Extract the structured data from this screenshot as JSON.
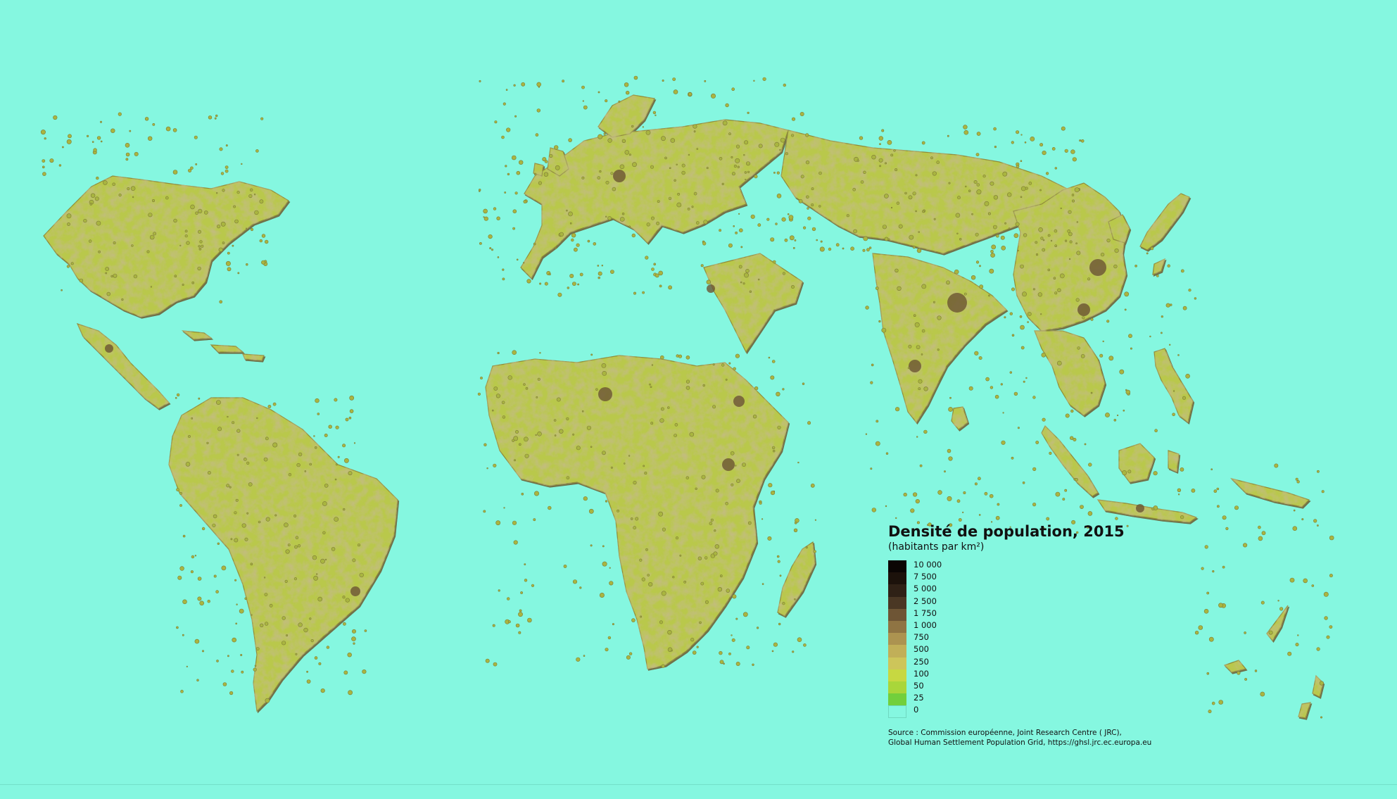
{
  "map": {
    "background": "#85f7e0",
    "relief_shadow": "#7a6a3a",
    "land_base": "#b8c94a"
  },
  "legend": {
    "title": "Densité de population, 2015",
    "subtitle": "(habitants par km²)",
    "classes": [
      {
        "label": "10 000",
        "color": "#0b0604"
      },
      {
        "label": "7 500",
        "color": "#1c120b"
      },
      {
        "label": "5 000",
        "color": "#2f2116"
      },
      {
        "label": "2 500",
        "color": "#4a3724"
      },
      {
        "label": "1 750",
        "color": "#6e5535"
      },
      {
        "label": "1 000",
        "color": "#8f7443"
      },
      {
        "label": "750",
        "color": "#ac9350"
      },
      {
        "label": "500",
        "color": "#c1af58"
      },
      {
        "label": "250",
        "color": "#cdc55a"
      },
      {
        "label": "100",
        "color": "#c7d841"
      },
      {
        "label": "50",
        "color": "#a9d63a"
      },
      {
        "label": "25",
        "color": "#72cf3c"
      },
      {
        "label": "0",
        "color": "#85f7e0"
      }
    ],
    "source_line1": "Source : Commission européenne, Joint Research Centre ( JRC),",
    "source_line2": "Global Human Settlement  Population Grid, https://ghsl.jrc.ec.europa.eu"
  }
}
